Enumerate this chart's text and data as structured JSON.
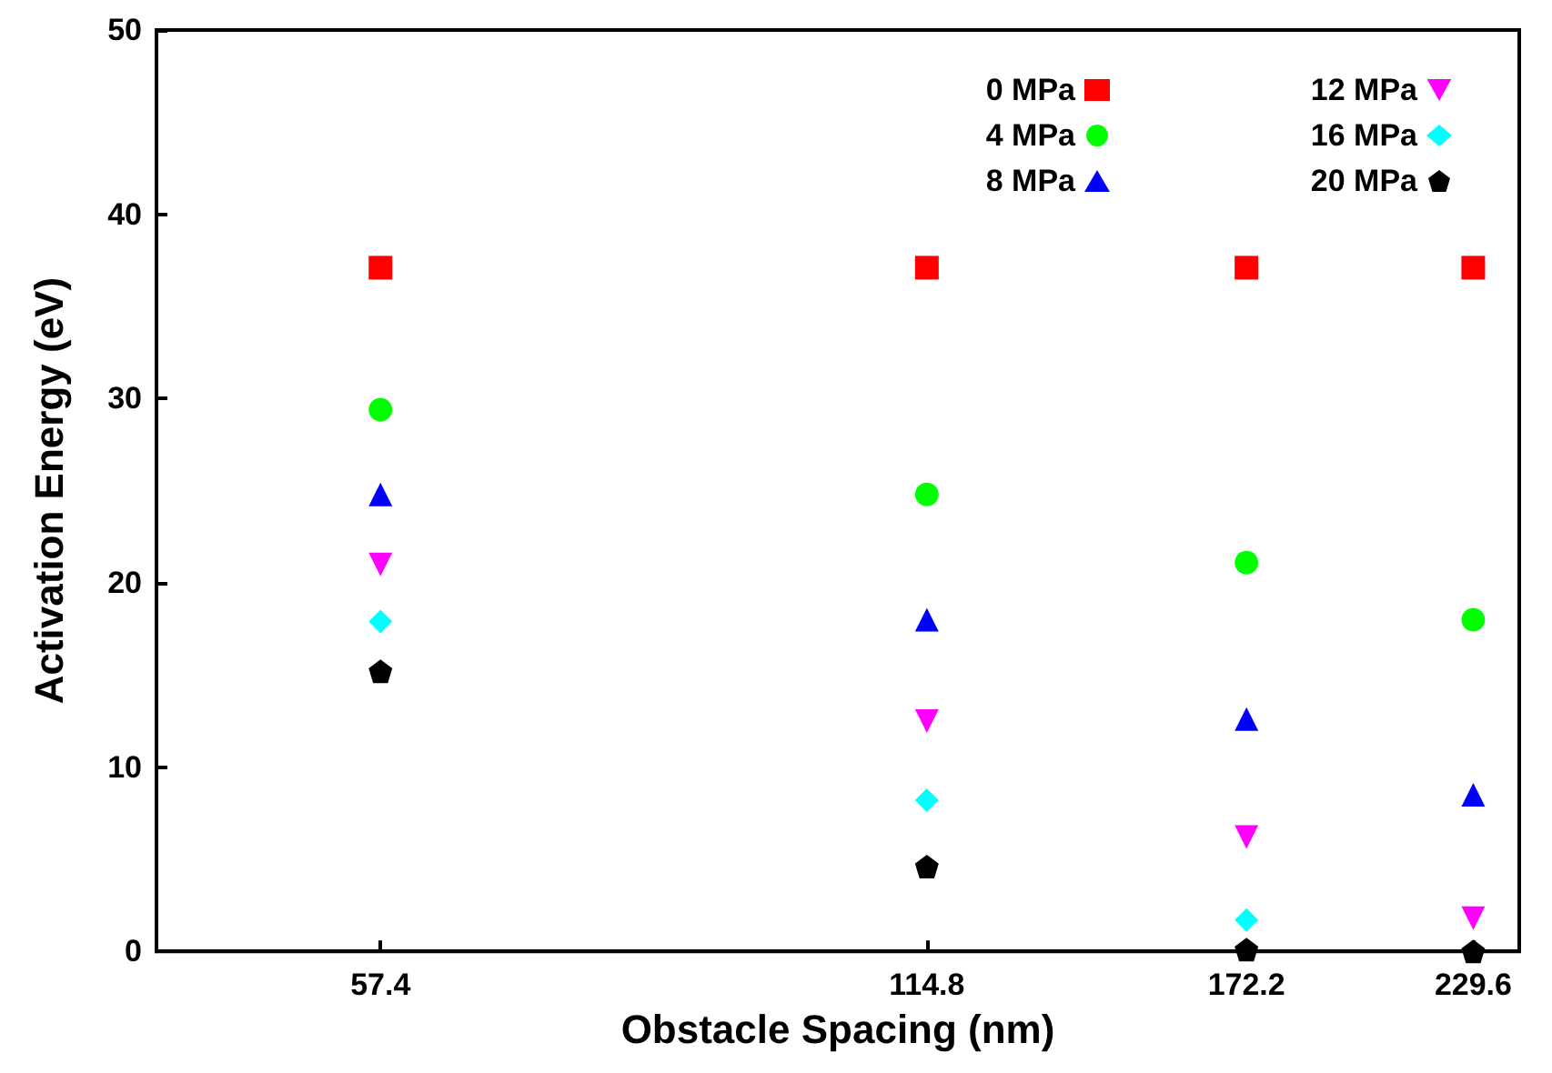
{
  "chart_data": {
    "type": "scatter",
    "xlabel": "Obstacle Spacing (nm)",
    "ylabel": "Activation Energy (eV)",
    "log": "x",
    "xlim": [
      43.2,
      243.4
    ],
    "xticks": [
      57.4,
      114.8,
      172.2,
      229.6
    ],
    "ylim": [
      0,
      50
    ],
    "yticks": [
      0,
      10,
      20,
      30,
      40,
      50
    ],
    "grid": false,
    "legend": "top right",
    "x": [
      57.4,
      114.8,
      172.2,
      229.6
    ],
    "series": [
      {
        "name": "0 MPa",
        "color": "#ff0000",
        "marker": "square",
        "values": [
          37.1,
          37.1,
          37.1,
          37.1
        ]
      },
      {
        "name": "4 MPa",
        "color": "#00ff00",
        "marker": "circle",
        "values": [
          29.4,
          24.8,
          21.1,
          18.0
        ]
      },
      {
        "name": "8 MPa",
        "color": "#0000ff",
        "marker": "triangle",
        "values": [
          24.8,
          18.0,
          12.6,
          8.5
        ]
      },
      {
        "name": "12 MPa",
        "color": "#ff00ff",
        "marker": "triangle-down",
        "values": [
          21.0,
          12.5,
          6.2,
          1.8
        ]
      },
      {
        "name": "16 MPa",
        "color": "#00ffff",
        "marker": "diamond",
        "values": [
          17.9,
          8.2,
          1.7,
          null
        ]
      },
      {
        "name": "20 MPa",
        "color": "#000000",
        "values": [
          15.2,
          4.6,
          0.1,
          0.0
        ]
      }
    ]
  }
}
